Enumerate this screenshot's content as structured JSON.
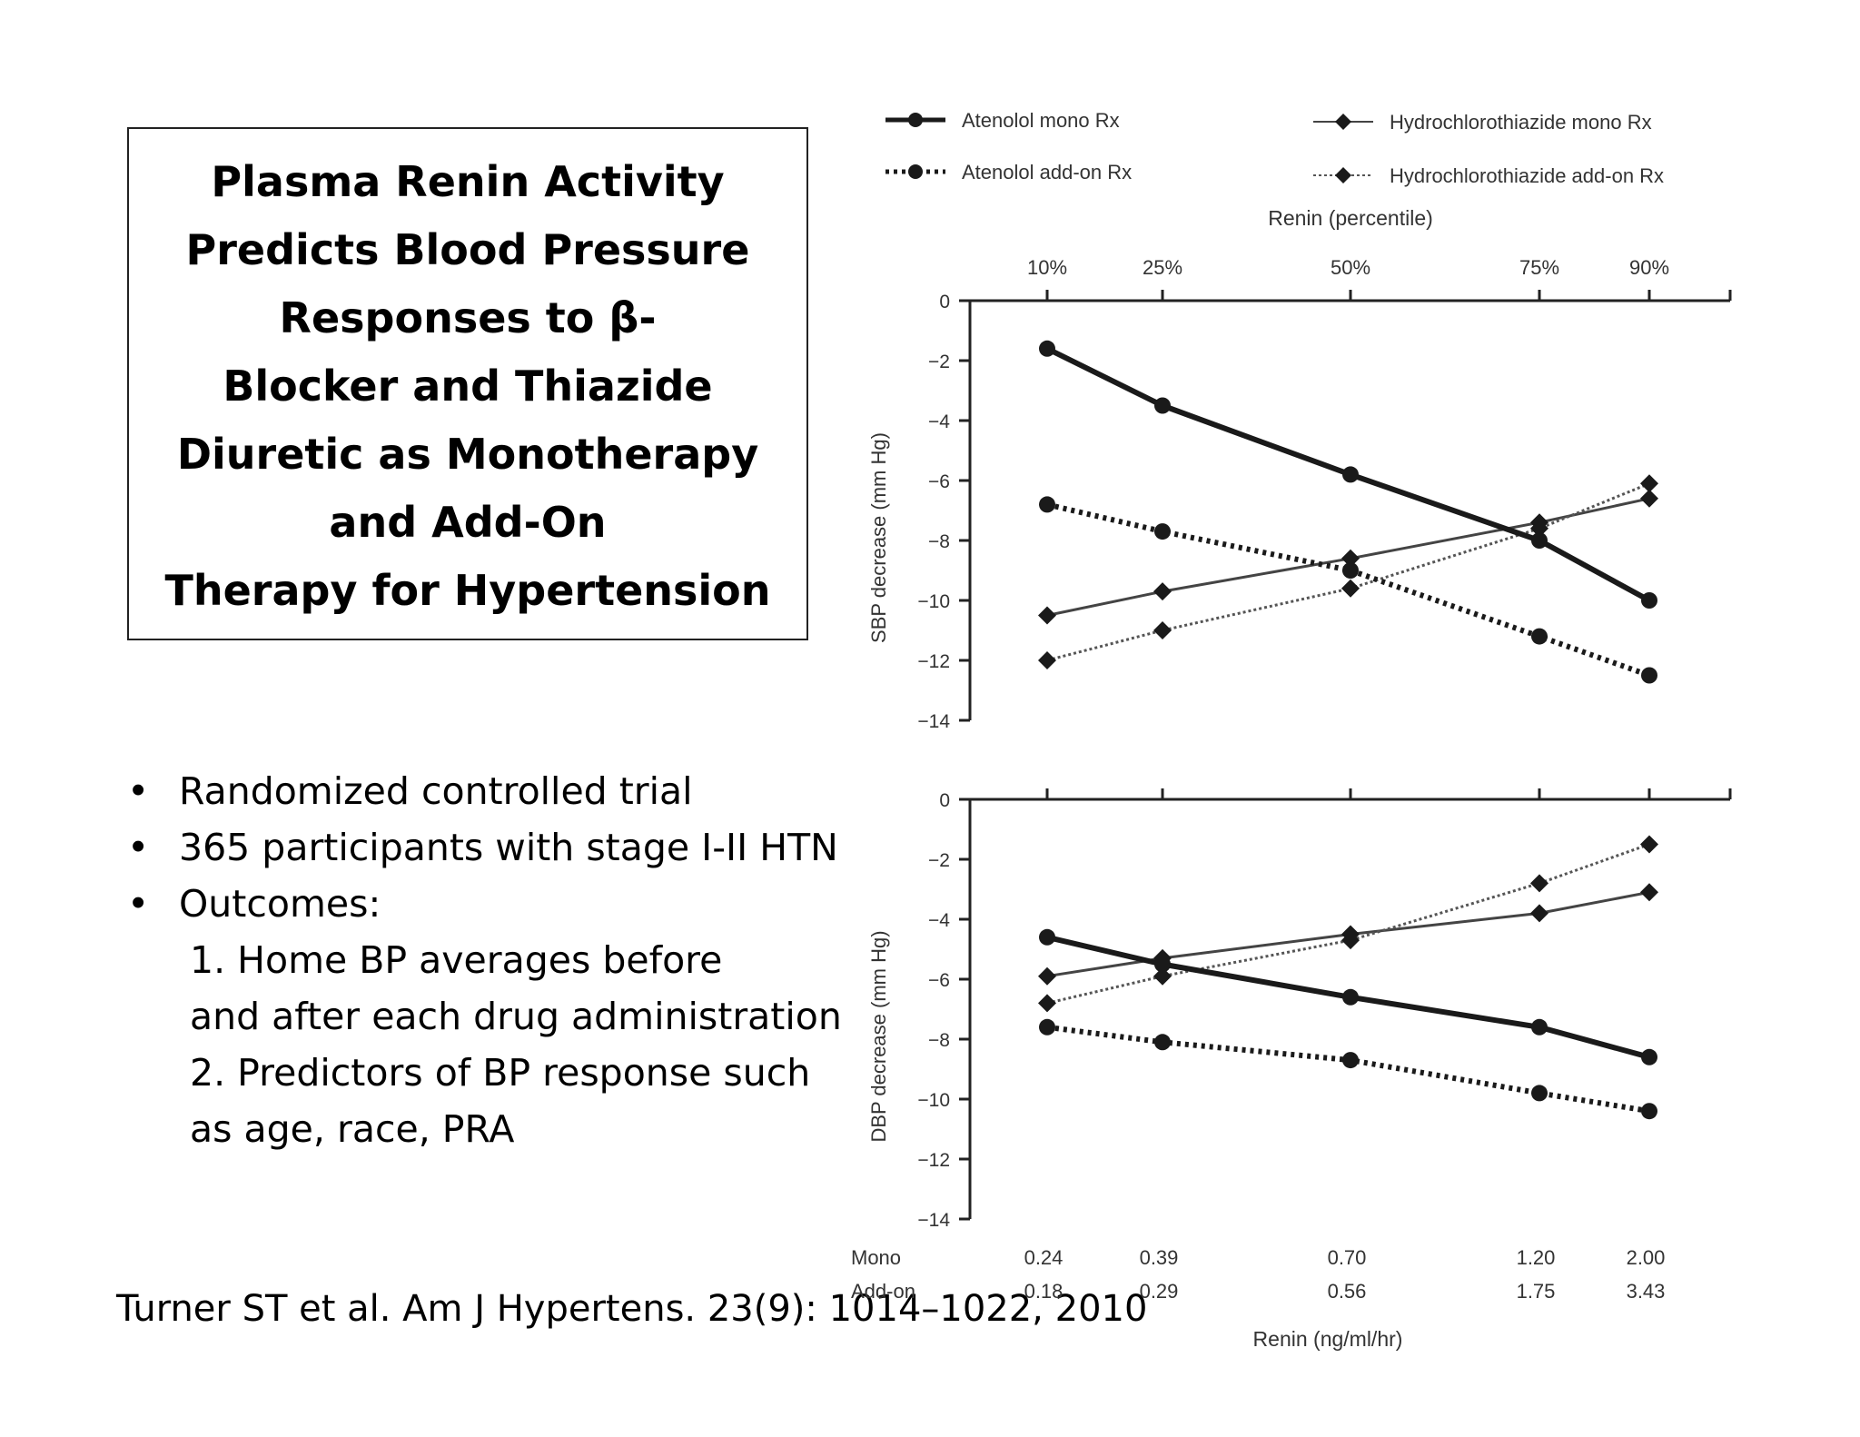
{
  "title_lines": [
    "Plasma Renin Activity",
    "Predicts Blood Pressure",
    "Responses to β-",
    "Blocker and Thiazide",
    "Diuretic as Monotherapy",
    "and Add-On",
    "Therapy for Hypertension"
  ],
  "bullets": {
    "marker": "•",
    "items": [
      "Randomized controlled trial",
      "365 participants with stage I-II HTN",
      "Outcomes:"
    ],
    "sub_lines": [
      "1. Home BP averages before",
      "and after each drug administration",
      "2. Predictors of BP response such",
      "as age, race, PRA"
    ]
  },
  "citation": "Turner ST et al. Am J Hypertens. 23(9): 1014–1022, 2010",
  "chart_data": {
    "type": "line",
    "legend": {
      "placement": "top",
      "entries": [
        {
          "name": "Atenolol mono Rx",
          "marker": "circle",
          "line": "solid-thick"
        },
        {
          "name": "Atenolol add-on Rx",
          "marker": "circle",
          "line": "dotted-thick"
        },
        {
          "name": "Hydrochlorothiazide mono Rx",
          "marker": "diamond",
          "line": "solid-thin"
        },
        {
          "name": "Hydrochlorothiazide add-on Rx",
          "marker": "diamond",
          "line": "dotted-thin"
        }
      ]
    },
    "top_axis": {
      "label": "Renin (percentile)",
      "ticks": [
        "10%",
        "25%",
        "50%",
        "75%",
        "90%"
      ]
    },
    "bottom_axis": {
      "label": "Renin (ng/ml/hr)",
      "rows": [
        {
          "name": "Mono",
          "values": [
            "0.24",
            "0.39",
            "0.70",
            "1.20",
            "2.00"
          ]
        },
        {
          "name": "Add-on",
          "values": [
            "0.18",
            "0.29",
            "0.56",
            "1.75",
            "3.43"
          ]
        }
      ]
    },
    "categories": [
      "10%",
      "25%",
      "50%",
      "75%",
      "90%"
    ],
    "panels": [
      {
        "ylabel": "SBP decrease (mm Hg)",
        "ylim": [
          -14,
          0
        ],
        "yticks": [
          "0",
          "−2",
          "−4",
          "−6",
          "−8",
          "−10",
          "−12",
          "−14"
        ],
        "series": [
          {
            "name": "Atenolol mono Rx",
            "values": [
              -1.6,
              -3.5,
              -5.8,
              -8.0,
              -10.0
            ]
          },
          {
            "name": "Atenolol add-on Rx",
            "values": [
              -6.8,
              -7.7,
              -9.0,
              -11.2,
              -12.5
            ]
          },
          {
            "name": "Hydrochlorothiazide mono Rx",
            "values": [
              -10.5,
              -9.7,
              -8.6,
              -7.4,
              -6.6
            ]
          },
          {
            "name": "Hydrochlorothiazide add-on Rx",
            "values": [
              -12.0,
              -11.0,
              -9.6,
              -7.6,
              -6.1
            ]
          }
        ]
      },
      {
        "ylabel": "DBP decrease (mm Hg)",
        "ylim": [
          -14,
          0
        ],
        "yticks": [
          "0",
          "−2",
          "−4",
          "−6",
          "−8",
          "−10",
          "−12",
          "−14"
        ],
        "series": [
          {
            "name": "Atenolol mono Rx",
            "values": [
              -4.6,
              -5.5,
              -6.6,
              -7.6,
              -8.6
            ]
          },
          {
            "name": "Atenolol add-on Rx",
            "values": [
              -7.6,
              -8.1,
              -8.7,
              -9.8,
              -10.4
            ]
          },
          {
            "name": "Hydrochlorothiazide mono Rx",
            "values": [
              -5.9,
              -5.3,
              -4.5,
              -3.8,
              -3.1
            ]
          },
          {
            "name": "Hydrochlorothiazide add-on Rx",
            "values": [
              -6.8,
              -5.9,
              -4.7,
              -2.8,
              -1.5
            ]
          }
        ]
      }
    ]
  }
}
